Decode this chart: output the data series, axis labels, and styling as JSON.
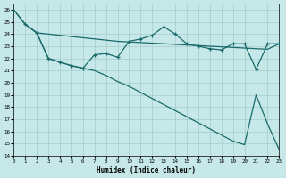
{
  "xlabel": "Humidex (Indice chaleur)",
  "xlim": [
    0,
    23
  ],
  "ylim": [
    14,
    26.5
  ],
  "xtick_vals": [
    0,
    1,
    2,
    3,
    4,
    5,
    6,
    7,
    8,
    9,
    10,
    11,
    12,
    13,
    14,
    15,
    16,
    17,
    18,
    19,
    20,
    21,
    22,
    23
  ],
  "ytick_vals": [
    14,
    15,
    16,
    17,
    18,
    19,
    20,
    21,
    22,
    23,
    24,
    25,
    26
  ],
  "bg_color": "#c6e8e8",
  "grid_color": "#a4cccc",
  "line_color": "#1a6b6b",
  "line1_x": [
    0,
    1,
    2,
    3,
    4,
    5,
    6,
    7,
    8,
    9,
    10,
    11,
    12,
    13,
    14,
    15,
    16,
    17,
    18,
    19,
    20,
    21,
    22,
    23
  ],
  "line1_y": [
    26.0,
    24.8,
    24.1,
    24.0,
    23.9,
    23.8,
    23.7,
    23.6,
    23.5,
    23.4,
    23.35,
    23.3,
    23.25,
    23.2,
    23.15,
    23.1,
    23.05,
    23.0,
    22.95,
    22.9,
    22.85,
    22.8,
    22.75,
    23.2
  ],
  "line2_x": [
    1,
    2,
    3,
    4,
    5,
    6,
    7,
    8,
    9,
    10,
    11,
    12,
    13,
    14,
    15,
    16,
    17,
    18,
    19,
    20,
    21,
    22,
    23
  ],
  "line2_y": [
    24.8,
    24.1,
    22.0,
    21.7,
    21.4,
    21.2,
    22.3,
    22.4,
    22.1,
    23.4,
    23.6,
    23.9,
    24.6,
    24.0,
    23.2,
    23.0,
    22.8,
    22.7,
    23.2,
    23.2,
    21.1,
    23.2,
    23.2
  ],
  "line3_x": [
    0,
    1,
    2,
    3,
    4,
    5,
    6,
    7,
    8,
    9,
    10,
    11,
    12,
    13,
    14,
    15,
    16,
    17,
    18,
    19,
    20,
    21,
    22,
    23
  ],
  "line3_y": [
    26.0,
    24.8,
    24.1,
    22.0,
    21.7,
    21.4,
    21.2,
    21.0,
    20.6,
    20.1,
    19.7,
    19.2,
    18.7,
    18.2,
    17.7,
    17.2,
    16.7,
    16.2,
    15.7,
    15.2,
    14.9,
    19.0,
    16.6,
    14.5
  ]
}
